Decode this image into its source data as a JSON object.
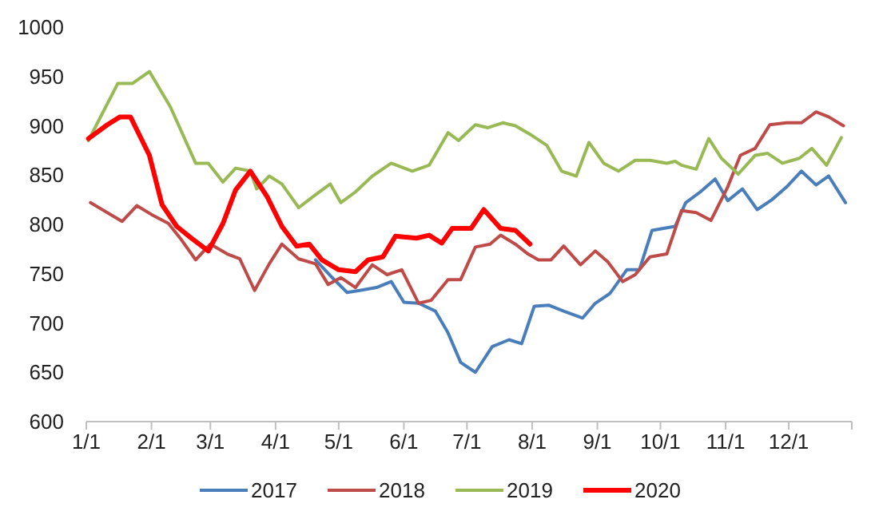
{
  "chart_data": {
    "type": "line",
    "legend": "bottom",
    "grid": false,
    "marker": "none",
    "line_style": "solid",
    "xlim": [
      "--01-01",
      "--12-31"
    ],
    "xticks": [
      {
        "value": "--01-01",
        "label": "1/1"
      },
      {
        "value": "--02-01",
        "label": "2/1"
      },
      {
        "value": "--03-01",
        "label": "3/1"
      },
      {
        "value": "--04-01",
        "label": "4/1"
      },
      {
        "value": "--05-01",
        "label": "5/1"
      },
      {
        "value": "--06-01",
        "label": "6/1"
      },
      {
        "value": "--07-01",
        "label": "7/1"
      },
      {
        "value": "--08-01",
        "label": "8/1"
      },
      {
        "value": "--09-01",
        "label": "9/1"
      },
      {
        "value": "--10-01",
        "label": "10/1"
      },
      {
        "value": "--11-01",
        "label": "11/1"
      },
      {
        "value": "--12-01",
        "label": "12/1"
      }
    ],
    "ylim": [
      600,
      1000
    ],
    "yticks": [
      600,
      650,
      700,
      750,
      800,
      850,
      900,
      950,
      1000
    ],
    "series": [
      {
        "name": "2017",
        "color": "#4a7ebb",
        "x": [
          "--04-20",
          "--04-27",
          "--05-05",
          "--05-11",
          "--05-19",
          "--05-26",
          "--06-01",
          "--06-08",
          "--06-16",
          "--06-22",
          "--06-28",
          "--07-05",
          "--07-13",
          "--07-21",
          "--07-27",
          "--08-02",
          "--08-09",
          "--08-16",
          "--08-25",
          "--08-31",
          "--09-07",
          "--09-15",
          "--09-21",
          "--09-27",
          "--10-08",
          "--10-13",
          "--10-20",
          "--10-27",
          "--11-02",
          "--11-09",
          "--11-16",
          "--11-23",
          "--11-30",
          "--12-07",
          "--12-14",
          "--12-20",
          "--12-28"
        ],
        "values": [
          764,
          748,
          731,
          733,
          736,
          742,
          721,
          720,
          712,
          690,
          660,
          650,
          676,
          683,
          679,
          717,
          718,
          712,
          705,
          720,
          730,
          754,
          754,
          794,
          798,
          822,
          833,
          846,
          824,
          836,
          815,
          825,
          838,
          854,
          840,
          849,
          822
        ]
      },
      {
        "name": "2018",
        "color": "#be4b48",
        "x": [
          "--01-03",
          "--01-18",
          "--01-25",
          "--02-01",
          "--02-09",
          "--02-15",
          "--02-22",
          "--03-01",
          "--03-09",
          "--03-15",
          "--03-22",
          "--03-29",
          "--04-04",
          "--04-12",
          "--04-20",
          "--04-26",
          "--05-02",
          "--05-09",
          "--05-17",
          "--05-24",
          "--05-31",
          "--06-08",
          "--06-14",
          "--06-22",
          "--06-28",
          "--07-05",
          "--07-12",
          "--07-17",
          "--07-24",
          "--07-30",
          "--08-04",
          "--08-10",
          "--08-16",
          "--08-24",
          "--08-31",
          "--09-06",
          "--09-13",
          "--09-19",
          "--09-26",
          "--10-04",
          "--10-11",
          "--10-18",
          "--10-25",
          "--11-02",
          "--11-08",
          "--11-15",
          "--11-22",
          "--11-30",
          "--12-07",
          "--12-14",
          "--12-20",
          "--12-27"
        ],
        "values": [
          822,
          803,
          819,
          810,
          801,
          785,
          764,
          780,
          770,
          765,
          733,
          760,
          780,
          765,
          760,
          739,
          746,
          736,
          759,
          749,
          754,
          720,
          723,
          744,
          744,
          777,
          780,
          789,
          780,
          770,
          764,
          764,
          778,
          759,
          773,
          762,
          742,
          749,
          767,
          770,
          814,
          812,
          804,
          838,
          870,
          877,
          901,
          903,
          903,
          914,
          909,
          900
        ]
      },
      {
        "name": "2019",
        "color": "#98b954",
        "x": [
          "--01-02",
          "--01-16",
          "--01-23",
          "--01-31",
          "--02-10",
          "--02-22",
          "--02-28",
          "--03-07",
          "--03-13",
          "--03-20",
          "--03-23",
          "--03-29",
          "--04-04",
          "--04-12",
          "--04-20",
          "--04-27",
          "--05-02",
          "--05-09",
          "--05-17",
          "--05-26",
          "--06-05",
          "--06-13",
          "--06-22",
          "--06-27",
          "--07-05",
          "--07-11",
          "--07-18",
          "--07-24",
          "--08-01",
          "--08-08",
          "--08-15",
          "--08-22",
          "--08-28",
          "--09-04",
          "--09-11",
          "--09-19",
          "--09-26",
          "--10-04",
          "--10-08",
          "--10-11",
          "--10-18",
          "--10-24",
          "--10-30",
          "--11-07",
          "--11-15",
          "--11-21",
          "--11-28",
          "--12-06",
          "--12-12",
          "--12-19",
          "--12-26"
        ],
        "values": [
          885,
          943,
          943,
          955,
          919,
          862,
          862,
          843,
          857,
          854,
          836,
          849,
          841,
          817,
          830,
          841,
          822,
          833,
          849,
          862,
          854,
          860,
          893,
          885,
          901,
          898,
          903,
          900,
          890,
          880,
          854,
          849,
          883,
          862,
          854,
          865,
          865,
          862,
          864,
          860,
          856,
          887,
          867,
          851,
          870,
          872,
          862,
          867,
          877,
          860,
          888
        ]
      },
      {
        "name": "2020",
        "color": "#ff0000",
        "x": [
          "--01-02",
          "--01-11",
          "--01-17",
          "--01-22",
          "--01-31",
          "--02-06",
          "--02-13",
          "--02-20",
          "--02-28",
          "--03-07",
          "--03-13",
          "--03-20",
          "--03-28",
          "--04-04",
          "--04-11",
          "--04-17",
          "--04-23",
          "--05-01",
          "--05-09",
          "--05-15",
          "--05-22",
          "--05-28",
          "--06-07",
          "--06-13",
          "--06-19",
          "--06-24",
          "--07-03",
          "--07-09",
          "--07-17",
          "--07-24",
          "--07-31"
        ],
        "values": [
          887,
          901,
          909,
          909,
          870,
          820,
          798,
          786,
          773,
          801,
          835,
          854,
          828,
          798,
          778,
          780,
          764,
          754,
          752,
          764,
          767,
          788,
          786,
          789,
          781,
          796,
          796,
          815,
          796,
          794,
          780
        ]
      }
    ]
  }
}
